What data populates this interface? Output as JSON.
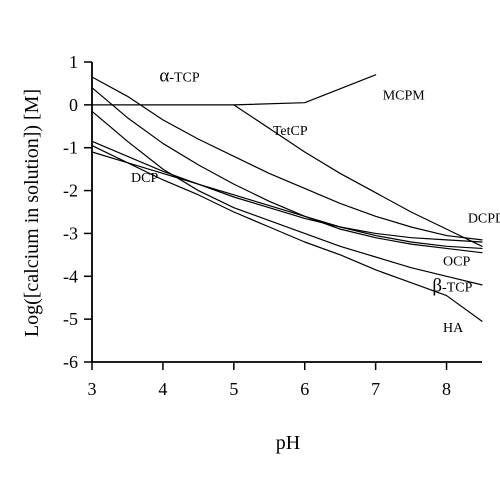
{
  "chart_data": {
    "type": "line",
    "title": "",
    "xlabel": "pH",
    "ylabel": "Log([calcium in solution]) [M]",
    "xlim": [
      3,
      8.5
    ],
    "ylim": [
      -6,
      1
    ],
    "xticks": [
      "3",
      "4",
      "5",
      "6",
      "7",
      "8"
    ],
    "yticks": [
      "-6",
      "-5",
      "-4",
      "-3",
      "-2",
      "-1",
      "0",
      "1"
    ],
    "grid": false,
    "legend": "none",
    "line_color": "#000000",
    "series": [
      {
        "name": "MCPM",
        "label": "MCPM",
        "x": [
          3,
          4,
          5,
          6,
          7
        ],
        "y": [
          0,
          0,
          0,
          0.05,
          0.7
        ]
      },
      {
        "name": "α-TCP",
        "label_prefix": "α",
        "label_suffix": "-TCP",
        "x": [
          3,
          3.5,
          4,
          4.5,
          5,
          5.5,
          6,
          6.5,
          7,
          7.5,
          8,
          8.5
        ],
        "y": [
          0.65,
          0.2,
          -0.35,
          -0.8,
          -1.2,
          -1.6,
          -1.95,
          -2.3,
          -2.6,
          -2.85,
          -3.05,
          -3.15
        ]
      },
      {
        "name": "TetCP",
        "label": "TetCP",
        "x": [
          5,
          5.5,
          6,
          6.5,
          7,
          7.5,
          8,
          8.5
        ],
        "y": [
          0,
          -0.55,
          -1.1,
          -1.6,
          -2.05,
          -2.5,
          -2.9,
          -3.3
        ]
      },
      {
        "name": "DCPD",
        "label": "DCPD",
        "x": [
          3,
          3.5,
          4,
          4.5,
          5,
          5.5,
          6,
          6.5,
          7,
          7.5,
          8,
          8.5
        ],
        "y": [
          -0.85,
          -1.2,
          -1.55,
          -1.85,
          -2.15,
          -2.4,
          -2.65,
          -2.85,
          -3.0,
          -3.1,
          -3.15,
          -3.2
        ]
      },
      {
        "name": "DCP",
        "label": "DCP",
        "x": [
          3,
          3.5,
          4,
          4.5,
          5,
          5.5,
          6,
          6.5,
          7,
          7.5,
          8,
          8.5
        ],
        "y": [
          -1.1,
          -1.35,
          -1.6,
          -1.85,
          -2.1,
          -2.35,
          -2.6,
          -2.85,
          -3.05,
          -3.2,
          -3.3,
          -3.35
        ]
      },
      {
        "name": "OCP",
        "label": "OCP",
        "x": [
          3,
          3.5,
          4,
          4.5,
          5,
          5.5,
          6,
          6.5,
          7,
          7.5,
          8,
          8.5
        ],
        "y": [
          0.4,
          -0.3,
          -0.9,
          -1.4,
          -1.85,
          -2.25,
          -2.6,
          -2.9,
          -3.1,
          -3.25,
          -3.35,
          -3.45
        ]
      },
      {
        "name": "β-TCP",
        "label_prefix": "β",
        "label_suffix": "-TCP",
        "x": [
          3,
          3.5,
          4,
          4.5,
          5,
          5.5,
          6,
          6.5,
          7,
          7.5,
          8,
          8.5
        ],
        "y": [
          -0.15,
          -0.85,
          -1.5,
          -2.0,
          -2.4,
          -2.7,
          -3.0,
          -3.3,
          -3.55,
          -3.8,
          -4.0,
          -4.2
        ]
      },
      {
        "name": "HA",
        "label": "HA",
        "x": [
          3,
          3.5,
          4,
          4.5,
          5,
          5.5,
          6,
          6.5,
          7,
          7.5,
          8,
          8.5
        ],
        "y": [
          -0.95,
          -1.35,
          -1.75,
          -2.1,
          -2.5,
          -2.85,
          -3.2,
          -3.5,
          -3.85,
          -4.15,
          -4.45,
          -5.05
        ]
      }
    ],
    "annotations": [
      {
        "series": "α-TCP",
        "x": 3.95,
        "y": 0.55
      },
      {
        "series": "MCPM",
        "x": 7.1,
        "y": 0.12
      },
      {
        "series": "TetCP",
        "x": 5.55,
        "y": -0.7
      },
      {
        "series": "DCP",
        "x": 3.55,
        "y": -1.8
      },
      {
        "series": "DCPD",
        "x": 8.3,
        "y": -2.75
      },
      {
        "series": "OCP",
        "x": 7.95,
        "y": -3.75
      },
      {
        "series": "β-TCP",
        "x": 7.8,
        "y": -4.35
      },
      {
        "series": "HA",
        "x": 7.95,
        "y": -5.3
      }
    ]
  }
}
